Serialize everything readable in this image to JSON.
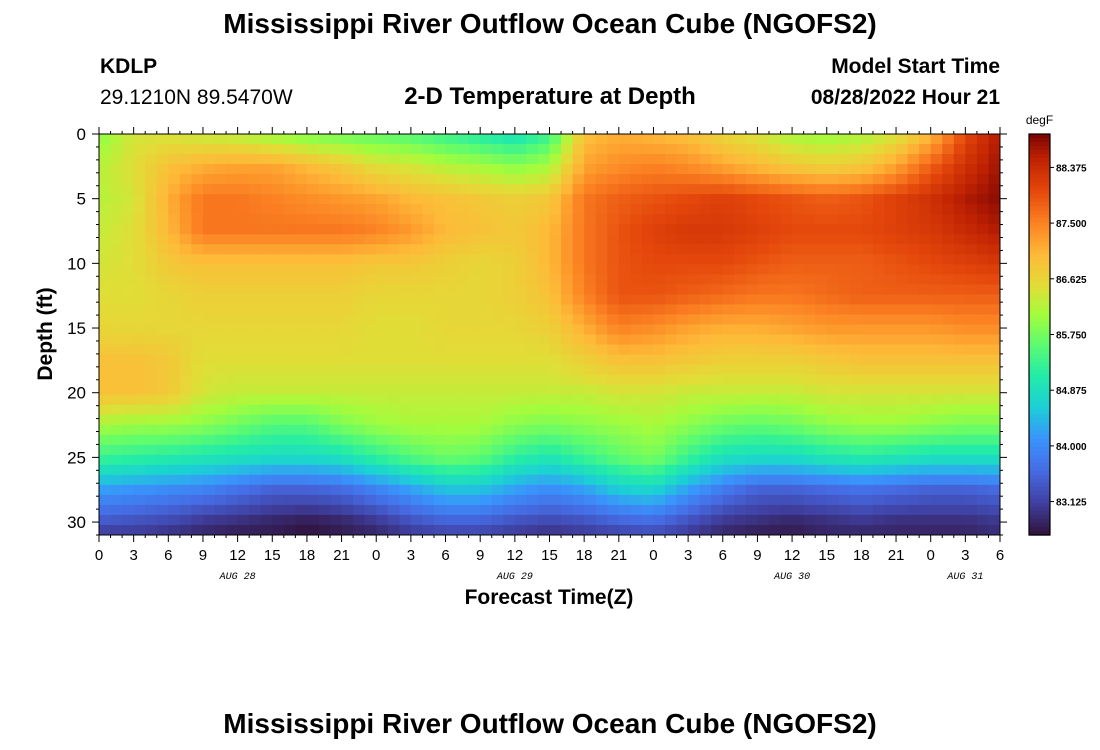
{
  "header": {
    "title": "Mississippi River Outflow Ocean Cube (NGOFS2)",
    "station_id": "KDLP",
    "station_coords": "29.1210N  89.5470W",
    "subtitle": "2-D Temperature at Depth",
    "model_start_label": "Model Start Time",
    "model_start_value": "08/28/2022 Hour 21"
  },
  "footer": {
    "title": "Mississippi River Outflow Ocean Cube (NGOFS2)"
  },
  "chart_data": {
    "type": "heatmap",
    "title": "2-D Temperature at Depth",
    "xlabel": "Forecast Time(Z)",
    "ylabel": "Depth (ft)",
    "x_tick_labels": [
      "0",
      "3",
      "6",
      "9",
      "12",
      "15",
      "18",
      "21",
      "0",
      "3",
      "6",
      "9",
      "12",
      "15",
      "18",
      "21",
      "0",
      "3",
      "6",
      "9",
      "12",
      "15",
      "18",
      "21",
      "0",
      "3",
      "6"
    ],
    "date_labels": [
      {
        "label": "AUG 28",
        "hours": 12
      },
      {
        "label": "AUG 29",
        "hours": 36
      },
      {
        "label": "AUG 30",
        "hours": 60
      },
      {
        "label": "AUG 31",
        "hours": 75
      }
    ],
    "x_range_hours": [
      0,
      78
    ],
    "y_ticks": [
      0,
      5,
      10,
      15,
      20,
      25,
      30
    ],
    "y_range_ft": [
      0,
      31
    ],
    "colorbar": {
      "unit": "degF",
      "ticks": [
        "88.375",
        "87.500",
        "86.625",
        "85.750",
        "84.875",
        "84.000",
        "83.125"
      ],
      "range": [
        82.6,
        88.9
      ]
    },
    "hours": [
      0,
      3,
      6,
      9,
      12,
      15,
      18,
      21,
      24,
      27,
      30,
      33,
      36,
      39,
      42,
      45,
      48,
      51,
      54,
      57,
      60,
      63,
      66,
      69,
      72,
      75,
      78
    ],
    "depths_ft": [
      0,
      2.5,
      5,
      7.5,
      10,
      12.5,
      15,
      17.5,
      20,
      22.5,
      25,
      27.5,
      30,
      31
    ],
    "values_degF": [
      [
        85.9,
        86.4,
        86.4,
        86.3,
        86.2,
        86.0,
        85.8,
        85.7,
        85.6,
        85.5,
        85.3,
        85.1,
        84.9,
        85.3,
        86.9,
        87.1,
        87.0,
        86.9,
        86.6,
        86.4,
        86.1,
        86.0,
        86.1,
        86.4,
        87.0,
        88.0,
        88.6
      ],
      [
        86.2,
        86.5,
        86.9,
        87.1,
        87.2,
        87.2,
        87.0,
        86.8,
        86.5,
        86.4,
        86.2,
        86.1,
        85.9,
        86.1,
        87.2,
        87.4,
        87.5,
        87.4,
        87.2,
        87.0,
        86.8,
        86.7,
        86.8,
        87.2,
        87.8,
        88.3,
        88.7
      ],
      [
        86.2,
        86.4,
        87.1,
        87.6,
        87.6,
        87.5,
        87.4,
        87.3,
        87.2,
        87.0,
        86.9,
        86.8,
        86.7,
        86.8,
        87.6,
        87.8,
        87.9,
        88.0,
        88.1,
        88.0,
        87.9,
        87.8,
        87.9,
        88.1,
        88.3,
        88.6,
        88.8
      ],
      [
        86.3,
        86.5,
        87.0,
        87.6,
        87.6,
        87.6,
        87.6,
        87.6,
        87.5,
        87.3,
        87.0,
        86.9,
        86.8,
        87.0,
        87.6,
        87.9,
        88.1,
        88.2,
        88.2,
        88.1,
        88.0,
        88.0,
        88.0,
        88.1,
        88.2,
        88.4,
        88.6
      ],
      [
        86.4,
        86.5,
        86.8,
        86.9,
        86.9,
        86.9,
        86.9,
        86.9,
        86.8,
        86.8,
        86.7,
        86.6,
        86.7,
        87.0,
        87.6,
        87.9,
        88.0,
        88.0,
        88.0,
        87.9,
        87.8,
        87.8,
        87.8,
        87.9,
        88.0,
        88.1,
        88.2
      ],
      [
        86.5,
        86.5,
        86.6,
        86.7,
        86.7,
        86.7,
        86.7,
        86.7,
        86.6,
        86.6,
        86.6,
        86.6,
        86.7,
        86.9,
        87.5,
        87.9,
        87.9,
        87.8,
        87.7,
        87.6,
        87.6,
        87.7,
        87.8,
        87.8,
        87.8,
        87.8,
        87.8
      ],
      [
        86.6,
        86.6,
        86.6,
        86.6,
        86.6,
        86.6,
        86.6,
        86.6,
        86.5,
        86.5,
        86.6,
        86.6,
        86.6,
        86.7,
        87.1,
        87.5,
        87.4,
        87.2,
        87.1,
        87.1,
        87.2,
        87.3,
        87.3,
        87.3,
        87.3,
        87.4,
        87.4
      ],
      [
        86.9,
        86.9,
        86.8,
        86.5,
        86.5,
        86.5,
        86.5,
        86.5,
        86.5,
        86.5,
        86.5,
        86.5,
        86.5,
        86.5,
        86.7,
        86.9,
        86.9,
        86.8,
        86.7,
        86.7,
        86.7,
        86.8,
        86.9,
        86.9,
        86.9,
        86.9,
        86.9
      ],
      [
        86.9,
        86.9,
        86.8,
        86.4,
        86.3,
        86.3,
        86.3,
        86.3,
        86.3,
        86.3,
        86.3,
        86.3,
        86.3,
        86.3,
        86.3,
        86.4,
        86.4,
        86.3,
        86.3,
        86.3,
        86.3,
        86.4,
        86.4,
        86.4,
        86.4,
        86.4,
        86.4
      ],
      [
        86.1,
        86.0,
        86.0,
        85.9,
        85.7,
        85.5,
        85.5,
        85.8,
        86.0,
        86.1,
        86.1,
        86.1,
        85.9,
        85.8,
        85.9,
        86.0,
        86.1,
        85.9,
        85.7,
        85.6,
        85.7,
        85.9,
        86.0,
        86.0,
        85.9,
        85.8,
        85.8
      ],
      [
        85.3,
        85.2,
        85.1,
        85.0,
        84.9,
        84.8,
        84.8,
        84.9,
        85.2,
        85.5,
        85.7,
        85.6,
        85.2,
        85.0,
        85.3,
        85.6,
        85.8,
        85.3,
        84.9,
        84.8,
        84.8,
        85.0,
        85.1,
        85.0,
        84.9,
        84.9,
        84.9
      ],
      [
        84.2,
        84.1,
        84.0,
        83.9,
        83.7,
        83.5,
        83.5,
        83.6,
        83.9,
        84.2,
        84.5,
        84.5,
        84.2,
        84.0,
        84.2,
        84.6,
        84.7,
        84.2,
        83.8,
        83.5,
        83.5,
        83.6,
        83.7,
        83.6,
        83.5,
        83.5,
        83.6
      ],
      [
        83.4,
        83.3,
        83.2,
        83.0,
        82.9,
        82.8,
        82.7,
        82.8,
        83.0,
        83.3,
        83.5,
        83.5,
        83.3,
        83.2,
        83.3,
        83.5,
        83.6,
        83.3,
        83.0,
        82.9,
        82.8,
        82.9,
        83.0,
        82.9,
        82.9,
        82.9,
        83.0
      ],
      [
        83.0,
        83.0,
        82.9,
        82.8,
        82.7,
        82.7,
        82.6,
        82.7,
        82.8,
        83.0,
        83.1,
        83.1,
        83.0,
        82.9,
        83.0,
        83.1,
        83.2,
        83.0,
        82.8,
        82.7,
        82.7,
        82.8,
        82.8,
        82.8,
        82.8,
        82.8,
        82.9
      ]
    ]
  }
}
